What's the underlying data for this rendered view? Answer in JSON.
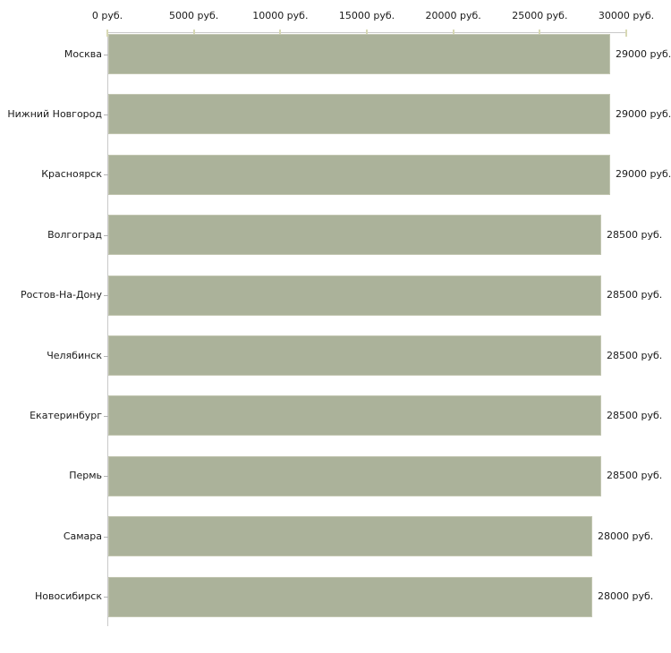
{
  "chart_data": {
    "type": "bar",
    "orientation": "horizontal",
    "title": "",
    "xlabel": "",
    "ylabel": "",
    "unit": "руб.",
    "xlim": [
      0,
      30000
    ],
    "grid": false,
    "x_axis_position": "top",
    "legend": "none",
    "categories": [
      "Москва",
      "Нижний Новгород",
      "Красноярск",
      "Волгоград",
      "Ростов-На-Дону",
      "Челябинск",
      "Екатеринбург",
      "Пермь",
      "Самара",
      "Новосибирск"
    ],
    "values": [
      29000,
      29000,
      29000,
      28500,
      28500,
      28500,
      28500,
      28500,
      28000,
      28000
    ],
    "value_labels": [
      "29000 руб.",
      "29000 руб.",
      "29000 руб.",
      "28500 руб.",
      "28500 руб.",
      "28500 руб.",
      "28500 руб.",
      "28500 руб.",
      "28000 руб.",
      "28000 руб."
    ],
    "x_ticks": [
      0,
      5000,
      10000,
      15000,
      20000,
      25000,
      30000
    ],
    "x_tick_labels": [
      "0 руб.",
      "5000 руб.",
      "10000 руб.",
      "15000 руб.",
      "20000 руб.",
      "25000 руб.",
      "30000 руб."
    ],
    "colors": {
      "bar_fill": "#abb29a",
      "bar_border": "#c2c6b1",
      "axis_line": "#c9c9c9",
      "x_tick_mark": "#d8d9b5",
      "category_tick_mark": "#b3b3b3",
      "text": "#1a1a1a",
      "background": "#ffffff"
    }
  }
}
